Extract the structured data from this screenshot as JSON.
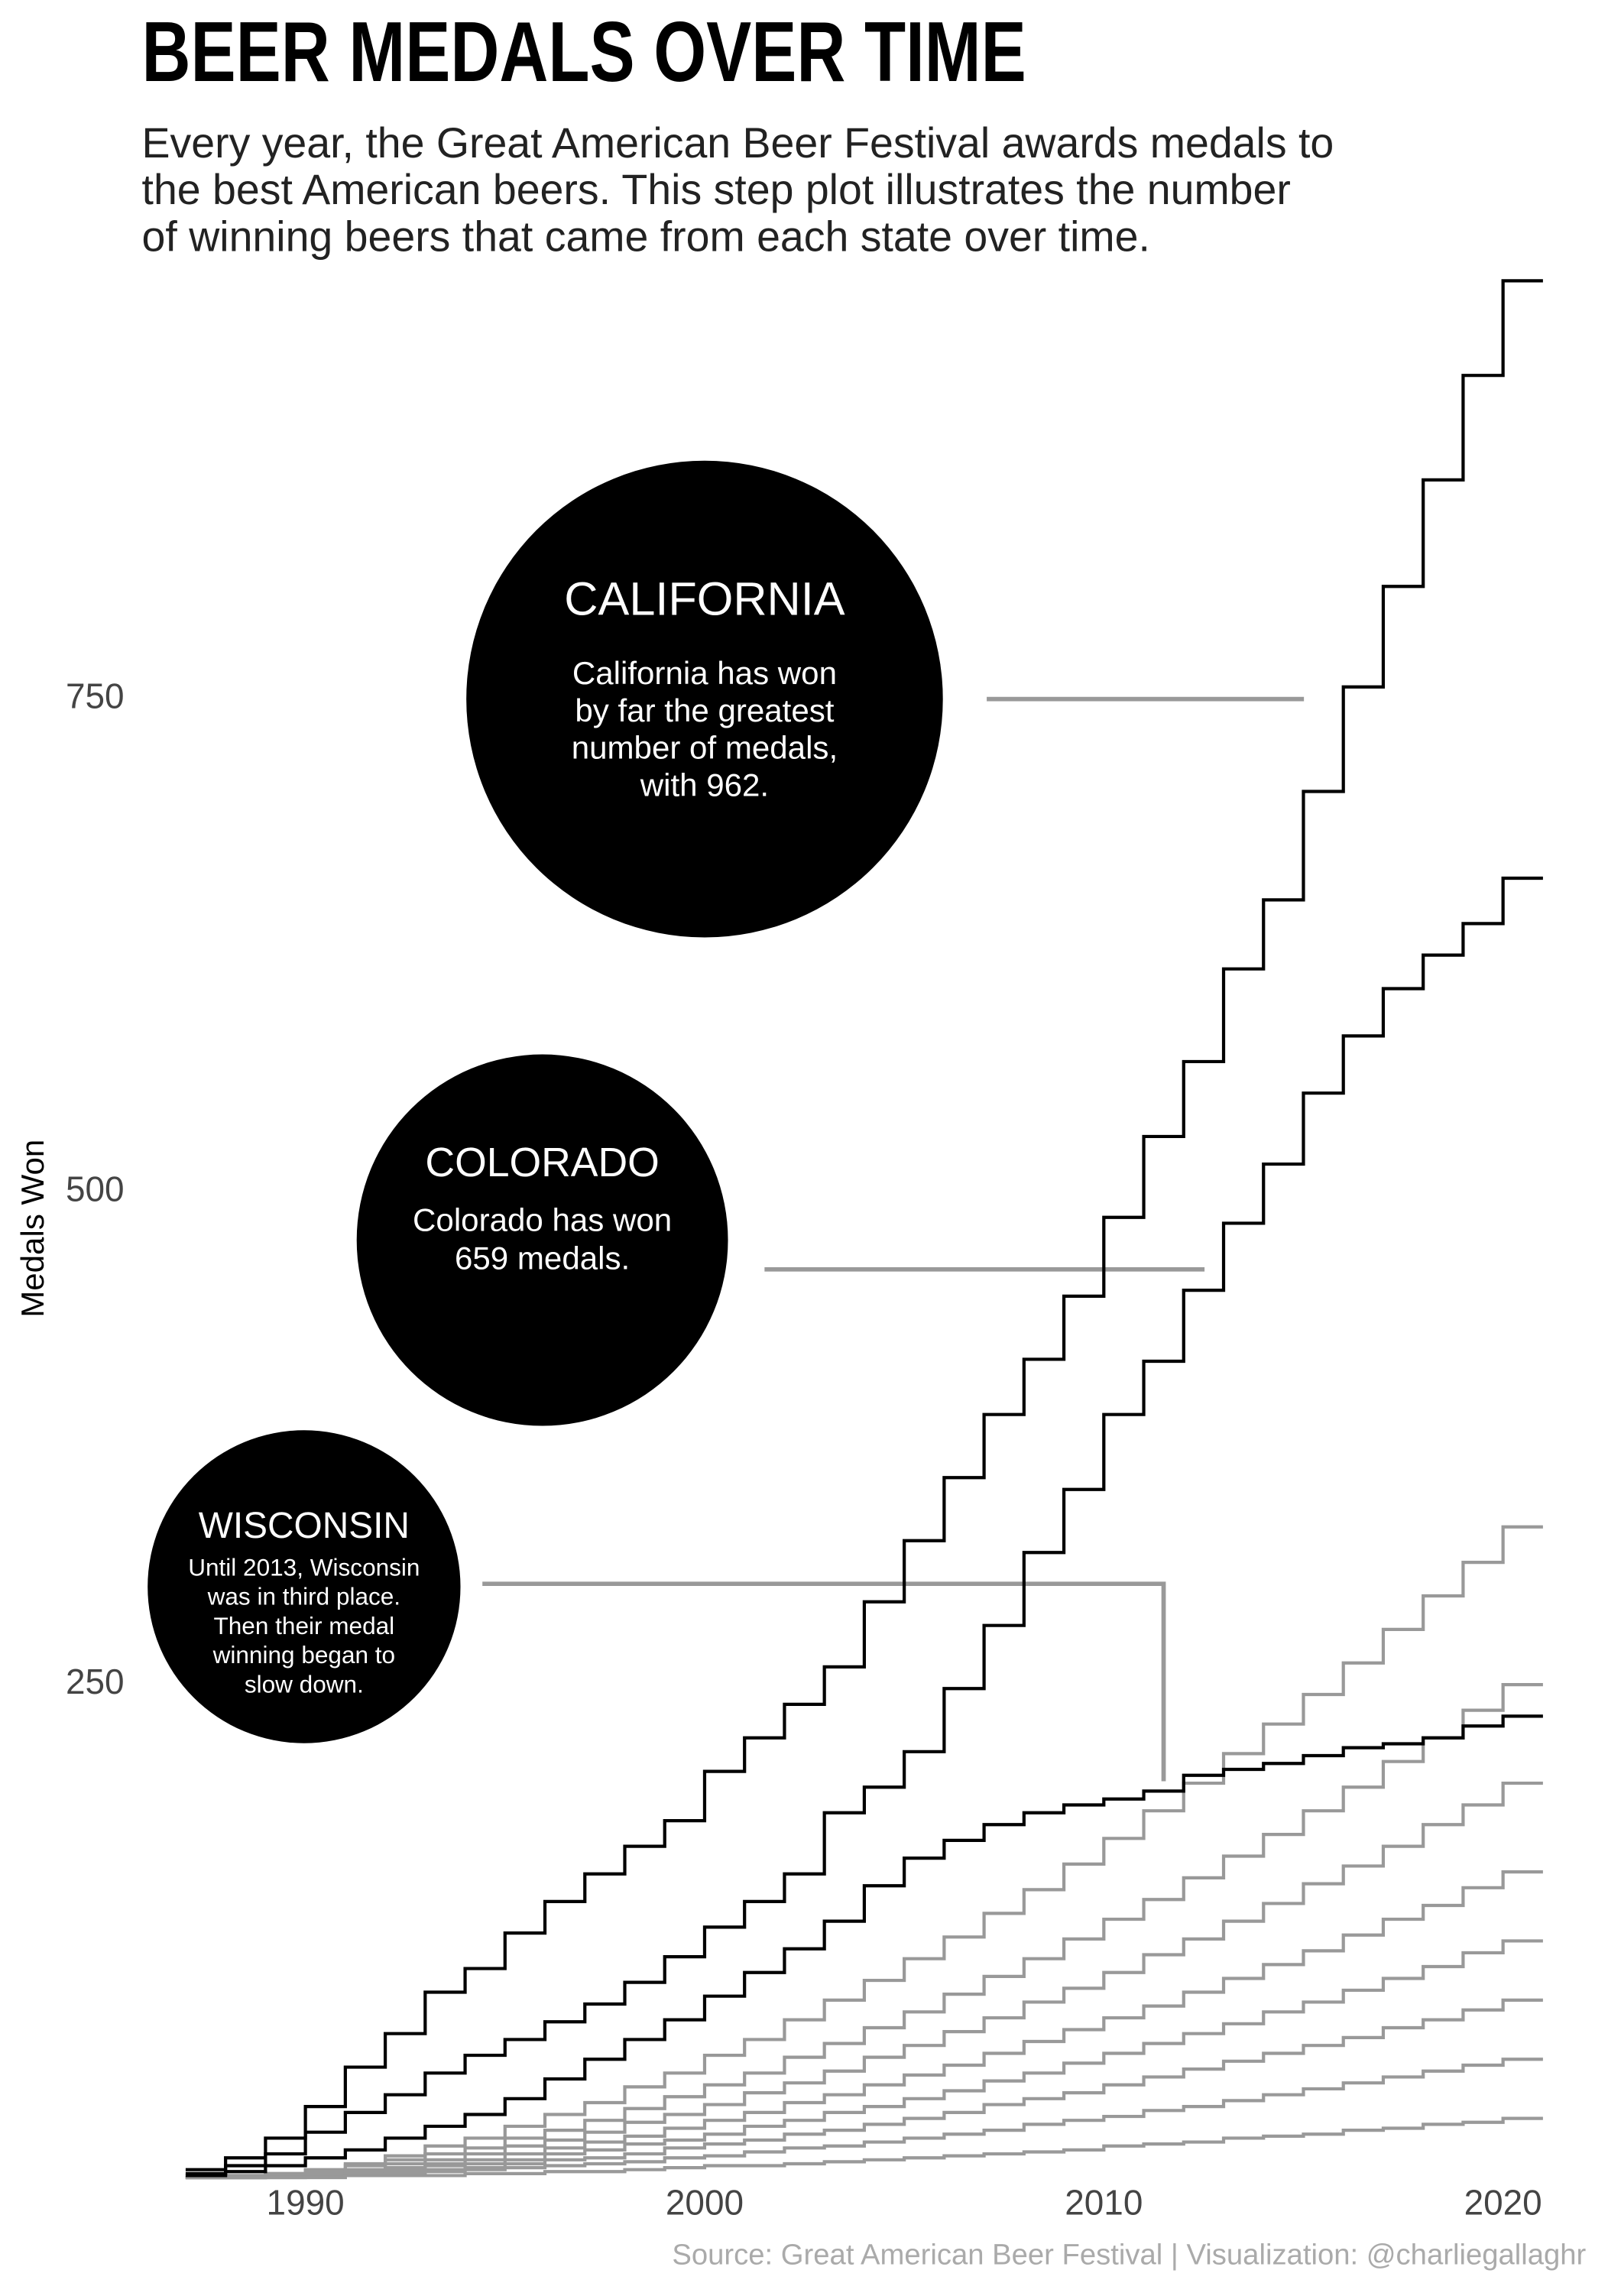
{
  "chart_data": {
    "type": "step",
    "title": "BEER MEDALS OVER TIME",
    "subtitle": [
      "Every year, the Great American Beer Festival awards medals to",
      "the best American beers. This step plot illustrates the number",
      "of winning beers that came from each state over time."
    ],
    "ylabel": "Medals Won",
    "source": "Source: Great American Beer Festival  |  Visualization: @charliegallaghr",
    "x": [
      1987,
      1988,
      1989,
      1990,
      1991,
      1992,
      1993,
      1994,
      1995,
      1996,
      1997,
      1998,
      1999,
      2000,
      2001,
      2002,
      2003,
      2004,
      2005,
      2006,
      2007,
      2008,
      2009,
      2010,
      2011,
      2012,
      2013,
      2014,
      2015,
      2016,
      2017,
      2018,
      2019,
      2020
    ],
    "xlim": [
      1987,
      2021
    ],
    "ylim": [
      0,
      962
    ],
    "xticks": [
      1990,
      2000,
      2010,
      2020
    ],
    "yticks": [
      250,
      500,
      750
    ],
    "series": [
      {
        "color": "#999999",
        "values": [
          0,
          1,
          2,
          4,
          7,
          11,
          16,
          20,
          26,
          32,
          38,
          46,
          53,
          62,
          70,
          80,
          90,
          100,
          111,
          122,
          134,
          146,
          159,
          172,
          186,
          200,
          215,
          230,
          245,
          261,
          278,
          295,
          312,
          330
        ]
      },
      {
        "color": "#999999",
        "values": [
          0,
          1,
          2,
          3,
          6,
          9,
          12,
          15,
          20,
          24,
          29,
          35,
          41,
          47,
          53,
          61,
          68,
          76,
          84,
          93,
          102,
          111,
          121,
          131,
          141,
          152,
          163,
          174,
          186,
          198,
          211,
          223,
          237,
          250
        ]
      },
      {
        "color": "#999999",
        "values": [
          0,
          0,
          1,
          3,
          4,
          7,
          9,
          12,
          16,
          19,
          23,
          28,
          32,
          37,
          43,
          48,
          54,
          61,
          67,
          74,
          81,
          89,
          96,
          104,
          113,
          121,
          130,
          139,
          149,
          158,
          168,
          179,
          189,
          200
        ]
      },
      {
        "color": "#999999",
        "values": [
          0,
          0,
          1,
          2,
          3,
          5,
          7,
          9,
          12,
          15,
          18,
          21,
          25,
          29,
          33,
          38,
          42,
          47,
          52,
          57,
          63,
          69,
          75,
          81,
          87,
          94,
          101,
          108,
          115,
          123,
          131,
          138,
          147,
          155
        ]
      },
      {
        "color": "#999999",
        "values": [
          0,
          0,
          1,
          2,
          3,
          4,
          6,
          7,
          9,
          12,
          14,
          17,
          19,
          22,
          26,
          29,
          33,
          36,
          40,
          44,
          49,
          53,
          58,
          63,
          68,
          73,
          78,
          84,
          89,
          95,
          101,
          107,
          114,
          120
        ]
      },
      {
        "color": "#999999",
        "values": [
          0,
          0,
          1,
          1,
          2,
          3,
          4,
          5,
          7,
          9,
          10,
          12,
          15,
          17,
          19,
          22,
          24,
          27,
          30,
          33,
          37,
          40,
          43,
          47,
          51,
          55,
          59,
          63,
          67,
          71,
          76,
          80,
          85,
          90
        ]
      },
      {
        "color": "#999999",
        "values": [
          0,
          0,
          0,
          1,
          1,
          2,
          3,
          4,
          5,
          6,
          7,
          8,
          10,
          11,
          13,
          15,
          16,
          18,
          20,
          22,
          24,
          27,
          29,
          31,
          34,
          36,
          39,
          42,
          45,
          48,
          51,
          54,
          57,
          60
        ]
      },
      {
        "color": "#999999",
        "values": [
          0,
          0,
          0,
          0,
          1,
          1,
          1,
          2,
          2,
          3,
          3,
          4,
          5,
          6,
          6,
          7,
          8,
          9,
          10,
          11,
          12,
          13,
          14,
          16,
          17,
          18,
          20,
          21,
          22,
          24,
          25,
          27,
          28,
          30
        ]
      },
      {
        "color": "#000000",
        "values": [
          1,
          3,
          6,
          10,
          14,
          20,
          26,
          32,
          40,
          50,
          60,
          70,
          80,
          92,
          104,
          116,
          130,
          148,
          162,
          171,
          179,
          185,
          189,
          192,
          196,
          204,
          207,
          210,
          214,
          218,
          220,
          223,
          229,
          234
        ]
      },
      {
        "color": "#000000",
        "values": [
          2,
          6,
          12,
          23,
          33,
          42,
          53,
          62,
          70,
          79,
          88,
          99,
          112,
          127,
          140,
          154,
          185,
          198,
          216,
          248,
          280,
          317,
          349,
          387,
          414,
          450,
          484,
          514,
          550,
          579,
          603,
          620,
          636,
          659
        ]
      },
      {
        "color": "#000000",
        "values": [
          4,
          10,
          20,
          36,
          56,
          73,
          94,
          106,
          124,
          140,
          154,
          168,
          181,
          206,
          223,
          240,
          259,
          292,
          323,
          355,
          387,
          415,
          447,
          487,
          528,
          566,
          613,
          648,
          703,
          756,
          807,
          861,
          914,
          962
        ]
      }
    ],
    "annotations": [
      {
        "title": "CALIFORNIA",
        "text": [
          "California has won",
          "by far the greatest",
          "number of medals,",
          "with 962."
        ]
      },
      {
        "title": "COLORADO",
        "text": [
          "Colorado has won",
          "659 medals."
        ]
      },
      {
        "title": "WISCONSIN",
        "text": [
          "Until 2013, Wisconsin",
          "was in third place.",
          "Then their medal",
          "winning began to",
          "slow down."
        ]
      }
    ]
  }
}
